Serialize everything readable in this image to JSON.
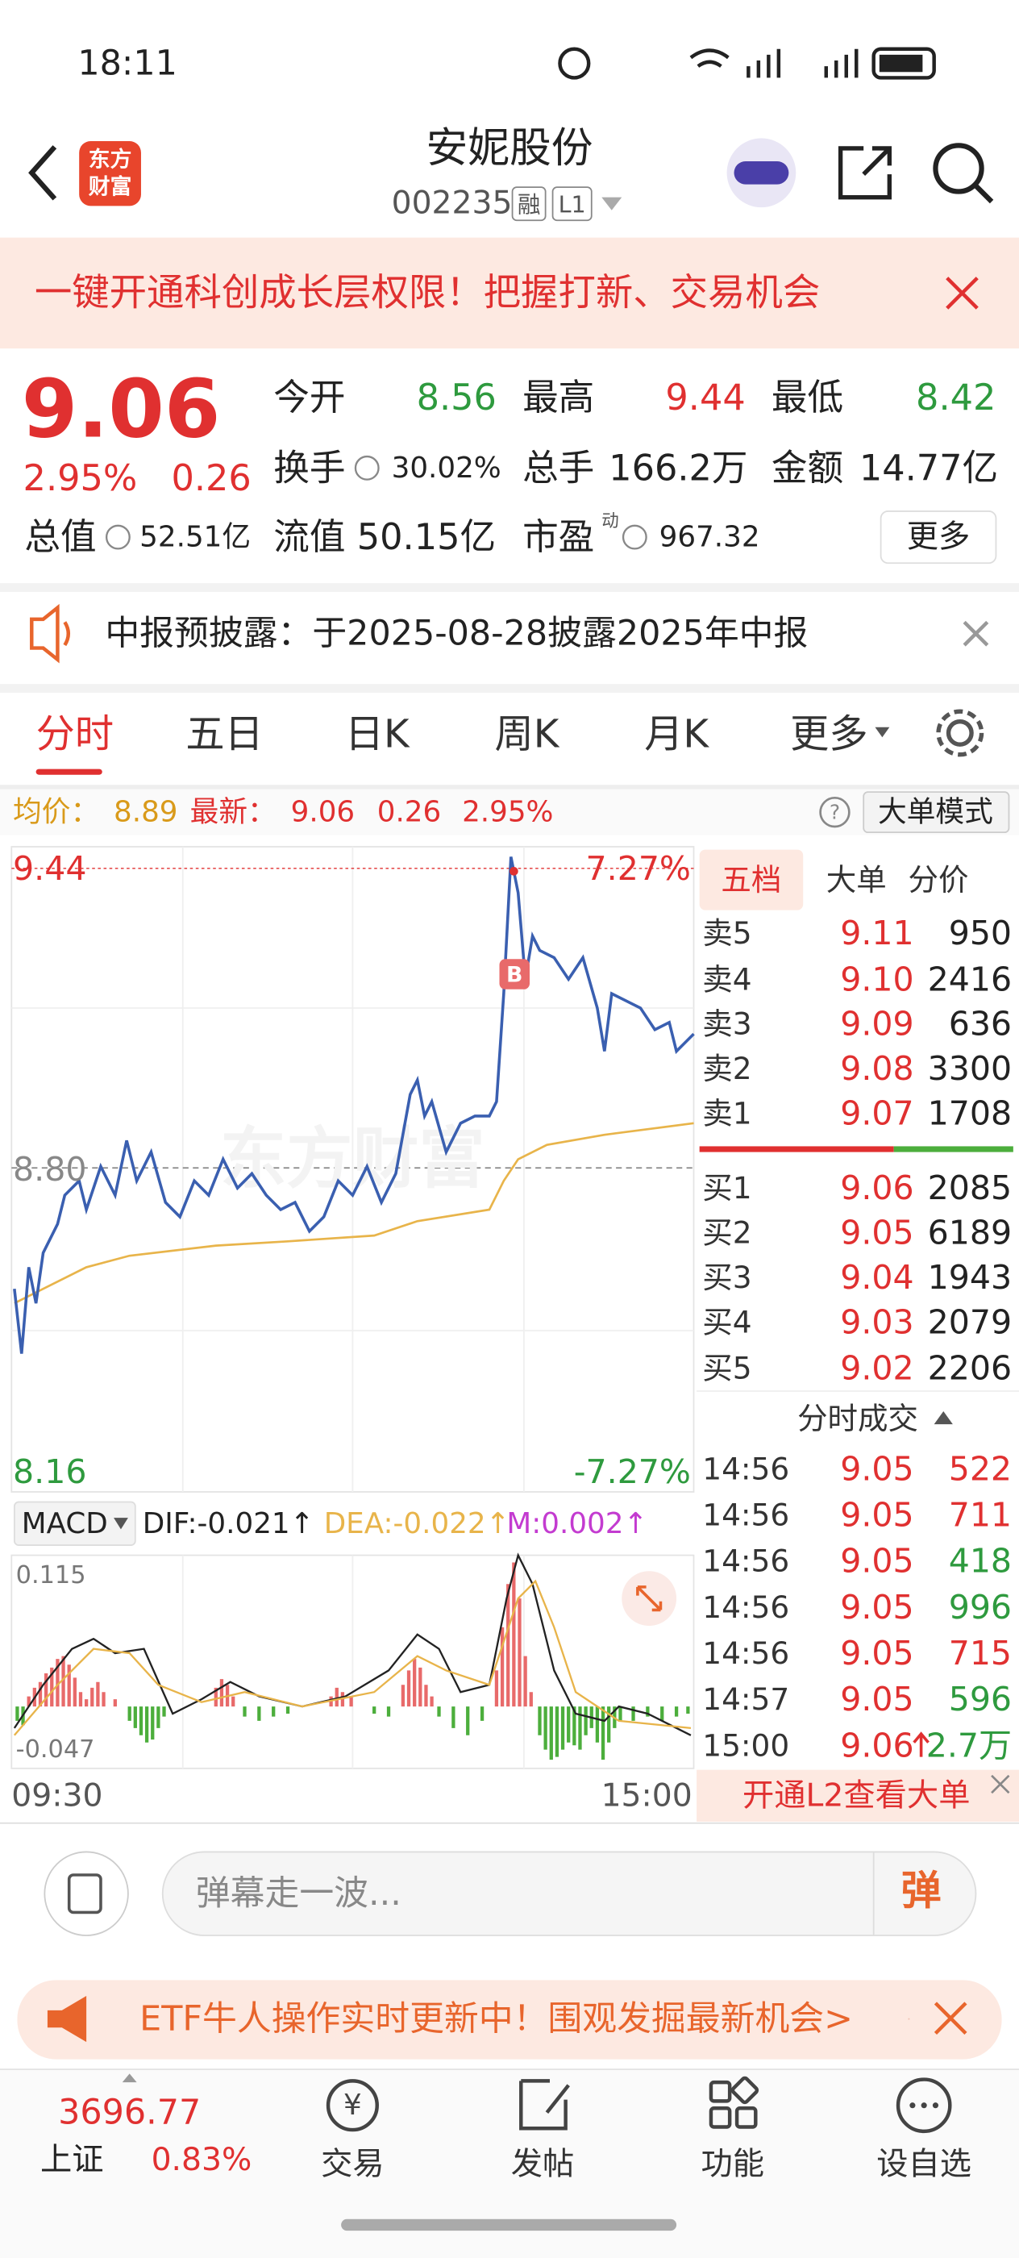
{
  "status_bar": {
    "time": "18:11"
  },
  "header": {
    "logo": [
      "东方",
      "财富"
    ],
    "title": "安妮股份",
    "code": "002235",
    "tags": [
      "融",
      "L1"
    ]
  },
  "banner": {
    "text": "一键开通科创成长层权限！把握打新、交易机会"
  },
  "quote": {
    "price": "9.06",
    "change_pct": "2.95%",
    "change": "0.26",
    "fields": [
      {
        "label": "今开",
        "value": "8.56",
        "color": "#2e9a3e"
      },
      {
        "label": "最高",
        "value": "9.44",
        "color": "#e03030"
      },
      {
        "label": "最低",
        "value": "8.42",
        "color": "#2e9a3e"
      },
      {
        "label": "换手",
        "value": "30.02%",
        "color": "#222222"
      },
      {
        "label": "总手",
        "value": "166.2万",
        "color": "#222222"
      },
      {
        "label": "金额",
        "value": "14.77亿",
        "color": "#222222"
      },
      {
        "label": "总值",
        "value": "52.51亿",
        "color": "#222222"
      },
      {
        "label": "流值",
        "value": "50.15亿",
        "color": "#222222"
      },
      {
        "label": "市盈",
        "value": "967.32",
        "color": "#222222",
        "sup": "动"
      }
    ],
    "more": "更多"
  },
  "notice": {
    "text": "中报预披露：于2025-08-28披露2025年中报"
  },
  "tabs": [
    "分时",
    "五日",
    "日K",
    "周K",
    "月K",
    "更多"
  ],
  "summary": {
    "avg_label": "均价：",
    "avg": "8.89",
    "latest_label": "最新：",
    "latest": "9.06",
    "change": "0.26",
    "change_pct": "2.95%",
    "help": "?",
    "mode": "大单模式"
  },
  "intraday": {
    "high": "9.44",
    "high_pct": "7.27%",
    "base": "8.80",
    "low": "8.16",
    "low_pct": "-7.27%",
    "buy_marker": "B",
    "watermark": "东方财富",
    "start": "09:30",
    "end": "15:00"
  },
  "macd": {
    "name": "MACD",
    "dif": "DIF:-0.021↑",
    "dea": "DEA:-0.022↑",
    "m": "M:0.002↑",
    "max": "0.115",
    "min": "-0.047"
  },
  "order_book": {
    "tabs": [
      "五档",
      "大单",
      "分价"
    ],
    "sell": [
      {
        "label": "卖5",
        "price": "9.11",
        "volume": "950"
      },
      {
        "label": "卖4",
        "price": "9.10",
        "volume": "2416"
      },
      {
        "label": "卖3",
        "price": "9.09",
        "volume": "636"
      },
      {
        "label": "卖2",
        "price": "9.08",
        "volume": "3300"
      },
      {
        "label": "卖1",
        "price": "9.07",
        "volume": "1708"
      }
    ],
    "buy": [
      {
        "label": "买1",
        "price": "9.06",
        "volume": "2085"
      },
      {
        "label": "买2",
        "price": "9.05",
        "volume": "6189"
      },
      {
        "label": "买3",
        "price": "9.04",
        "volume": "1943"
      },
      {
        "label": "买4",
        "price": "9.03",
        "volume": "2079"
      },
      {
        "label": "买5",
        "price": "9.02",
        "volume": "2206"
      }
    ]
  },
  "trades": {
    "title": "分时成交",
    "rows": [
      {
        "time": "14:56",
        "price": "9.05",
        "volume": "522",
        "color": "#e03030"
      },
      {
        "time": "14:56",
        "price": "9.05",
        "volume": "711",
        "color": "#e03030"
      },
      {
        "time": "14:56",
        "price": "9.05",
        "volume": "418",
        "color": "#2e9a3e"
      },
      {
        "time": "14:56",
        "price": "9.05",
        "volume": "996",
        "color": "#2e9a3e"
      },
      {
        "time": "14:56",
        "price": "9.05",
        "volume": "715",
        "color": "#e03030"
      },
      {
        "time": "14:57",
        "price": "9.05",
        "volume": "596",
        "color": "#2e9a3e"
      },
      {
        "time": "15:00",
        "price": "9.06",
        "volume": "2.7万",
        "color": "#2e9a3e"
      }
    ]
  },
  "l2": "开通L2查看大单",
  "comment": {
    "placeholder": "弹幕走一波...",
    "button": "弹"
  },
  "etf_banner": "ETF牛人操作实时更新中！围观发掘最新机会>",
  "nav": {
    "index_value": "3696.77",
    "index_name": "上证",
    "index_change": "0.83%",
    "trade_icon": "¥",
    "items": [
      "交易",
      "发帖",
      "功能",
      "设自选"
    ]
  }
}
